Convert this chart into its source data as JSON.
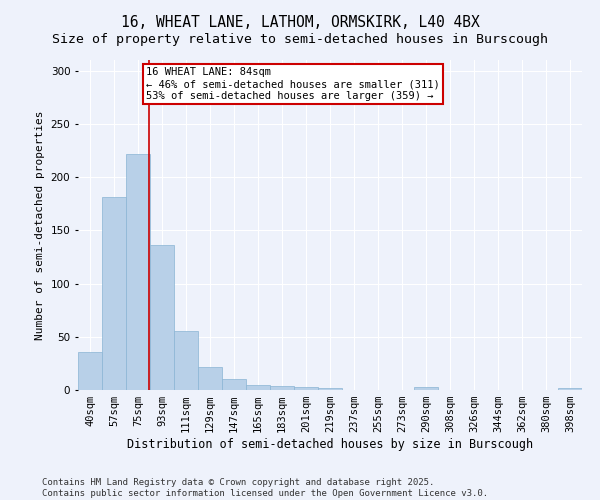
{
  "title": "16, WHEAT LANE, LATHOM, ORMSKIRK, L40 4BX",
  "subtitle": "Size of property relative to semi-detached houses in Burscough",
  "xlabel": "Distribution of semi-detached houses by size in Burscough",
  "ylabel": "Number of semi-detached properties",
  "categories": [
    "40sqm",
    "57sqm",
    "75sqm",
    "93sqm",
    "111sqm",
    "129sqm",
    "147sqm",
    "165sqm",
    "183sqm",
    "201sqm",
    "219sqm",
    "237sqm",
    "255sqm",
    "273sqm",
    "290sqm",
    "308sqm",
    "326sqm",
    "344sqm",
    "362sqm",
    "380sqm",
    "398sqm"
  ],
  "values": [
    36,
    181,
    222,
    136,
    55,
    22,
    10,
    5,
    4,
    3,
    2,
    0,
    0,
    0,
    3,
    0,
    0,
    0,
    0,
    0,
    2
  ],
  "bar_color": "#b8d0e8",
  "bar_edge_color": "#8ab4d4",
  "vline_color": "#cc0000",
  "vline_x": 2.45,
  "annotation_box_color": "#ffffff",
  "annotation_box_edge": "#cc0000",
  "property_line_label": "16 WHEAT LANE: 84sqm",
  "annotation_line1": "← 46% of semi-detached houses are smaller (311)",
  "annotation_line2": "53% of semi-detached houses are larger (359) →",
  "ylim": [
    0,
    310
  ],
  "yticks": [
    0,
    50,
    100,
    150,
    200,
    250,
    300
  ],
  "background_color": "#eef2fb",
  "grid_color": "#ffffff",
  "footer": "Contains HM Land Registry data © Crown copyright and database right 2025.\nContains public sector information licensed under the Open Government Licence v3.0.",
  "title_fontsize": 10.5,
  "subtitle_fontsize": 9.5,
  "xlabel_fontsize": 8.5,
  "ylabel_fontsize": 8,
  "tick_fontsize": 7.5,
  "annot_fontsize": 7.5,
  "footer_fontsize": 6.5
}
